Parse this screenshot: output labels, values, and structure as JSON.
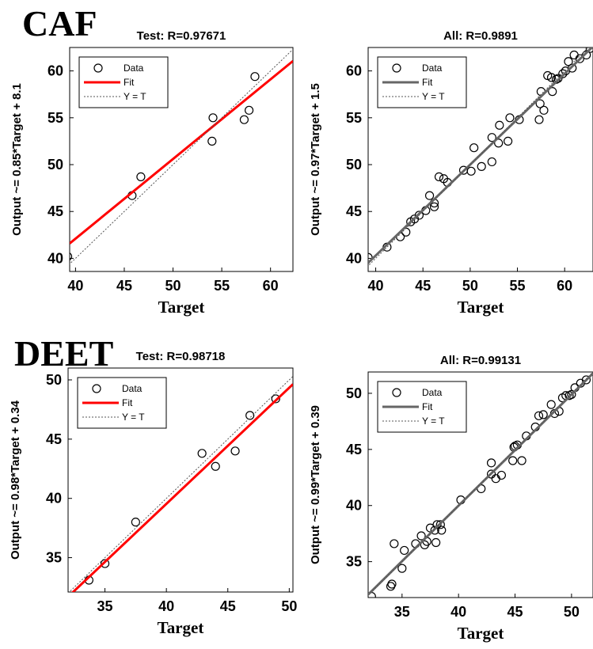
{
  "panel_labels": [
    "CAF",
    "DEET"
  ],
  "chart_data": [
    {
      "type": "scatter",
      "title": "Test: R=0.97671",
      "xlabel": "Target",
      "ylabel": "Output ~= 0.85*Target + 8.1",
      "xlim": [
        39.4,
        62.3
      ],
      "ylim": [
        38.6,
        62.5
      ],
      "xticks": [
        40,
        45,
        50,
        55,
        60
      ],
      "yticks": [
        40,
        45,
        50,
        55,
        60
      ],
      "legend": "upper left",
      "series": [
        {
          "name": "Data",
          "color": "#000000",
          "x": [
            39.2,
            45.8,
            46.7,
            54.1,
            54.0,
            57.3,
            57.8,
            58.4
          ],
          "values": [
            40.2,
            46.7,
            48.7,
            55.0,
            52.5,
            54.8,
            55.8,
            59.4
          ]
        },
        {
          "name": "Fit",
          "color": "#ff0000",
          "slope": 0.85,
          "intercept": 8.1
        },
        {
          "name": "Y = T",
          "color": "#555555"
        }
      ]
    },
    {
      "type": "scatter",
      "title": "All: R=0.9891",
      "xlabel": "Target",
      "ylabel": "Output ~= 0.97*Target + 1.5",
      "xlim": [
        39.2,
        63
      ],
      "ylim": [
        38.6,
        62.5
      ],
      "xticks": [
        40,
        45,
        50,
        55,
        60
      ],
      "yticks": [
        40,
        45,
        50,
        55,
        60
      ],
      "legend": "upper left",
      "series": [
        {
          "name": "Data",
          "color": "#000000",
          "x": [
            39.2,
            41.2,
            42.6,
            43.2,
            43.7,
            44.1,
            44.6,
            45.3,
            45.7,
            46.2,
            46.2,
            46.7,
            47.2,
            47.6,
            49.3,
            50.1,
            50.4,
            51.2,
            52.3,
            52.3,
            53.0,
            53.1,
            54.0,
            54.2,
            55.2,
            57.3,
            57.4,
            57.5,
            57.8,
            58.2,
            58.6,
            58.7,
            59.1,
            59.3,
            59.8,
            60.1,
            60.4,
            60.8,
            61.0,
            61.6,
            62.3,
            62.7
          ],
          "values": [
            40.1,
            41.2,
            42.3,
            42.8,
            43.9,
            44.2,
            44.6,
            45.1,
            46.7,
            45.5,
            45.9,
            48.7,
            48.5,
            48.1,
            49.4,
            49.3,
            51.8,
            49.8,
            50.3,
            52.9,
            52.3,
            54.2,
            52.5,
            55.0,
            54.8,
            54.8,
            56.5,
            57.8,
            55.8,
            59.5,
            59.3,
            57.8,
            59.1,
            59.2,
            59.7,
            60.0,
            61.0,
            60.3,
            61.7,
            61.3,
            61.7,
            62.4
          ]
        },
        {
          "name": "Fit",
          "color": "#666666",
          "slope": 0.97,
          "intercept": 1.5
        },
        {
          "name": "Y = T",
          "color": "#555555"
        }
      ]
    },
    {
      "type": "scatter",
      "title": "Test: R=0.98718",
      "xlabel": "Target",
      "ylabel": "Output ~= 0.98*Target + 0.34",
      "xlim": [
        32.0,
        50.3
      ],
      "ylim": [
        32.1,
        51.0
      ],
      "xticks": [
        35,
        40,
        45,
        50
      ],
      "yticks": [
        35,
        40,
        45,
        50
      ],
      "legend": "upper left",
      "series": [
        {
          "name": "Data",
          "color": "#000000",
          "x": [
            33.7,
            35.0,
            37.5,
            42.9,
            44.0,
            45.6,
            46.8,
            48.9
          ],
          "values": [
            33.1,
            34.5,
            38.0,
            43.8,
            42.7,
            44.0,
            47.0,
            48.4
          ]
        },
        {
          "name": "Fit",
          "color": "#ff0000",
          "slope": 0.98,
          "intercept": 0.34
        },
        {
          "name": "Y = T",
          "color": "#555555"
        }
      ]
    },
    {
      "type": "scatter",
      "title": "All: R=0.99131",
      "xlabel": "Target",
      "ylabel": "Output ~= 0.99*Target + 0.39",
      "xlim": [
        32.0,
        51.9
      ],
      "ylim": [
        31.8,
        51.9
      ],
      "xticks": [
        35,
        40,
        45,
        50
      ],
      "yticks": [
        35,
        40,
        45,
        50
      ],
      "legend": "upper left",
      "series": [
        {
          "name": "Data",
          "color": "#000000",
          "x": [
            32.3,
            34.0,
            34.1,
            34.3,
            35.0,
            35.2,
            36.2,
            36.7,
            37.0,
            37.2,
            37.5,
            37.9,
            38.0,
            38.1,
            38.4,
            38.5,
            40.2,
            42.0,
            42.9,
            42.9,
            43.3,
            43.8,
            44.8,
            44.9,
            45.0,
            45.2,
            45.6,
            46.0,
            46.8,
            47.1,
            47.5,
            48.2,
            48.5,
            48.9,
            49.2,
            49.5,
            49.8,
            50.0,
            50.3,
            50.8,
            51.3
          ],
          "values": [
            31.9,
            32.8,
            33.0,
            36.6,
            34.4,
            36.0,
            36.6,
            37.3,
            36.5,
            36.8,
            38.0,
            37.8,
            36.7,
            38.3,
            38.3,
            37.8,
            40.5,
            41.5,
            43.8,
            42.8,
            42.4,
            42.7,
            44.0,
            45.2,
            45.3,
            45.4,
            44.0,
            46.2,
            47.0,
            48.0,
            48.1,
            49.0,
            48.2,
            48.4,
            49.6,
            49.8,
            49.8,
            49.9,
            50.5,
            50.9,
            51.2
          ]
        },
        {
          "name": "Fit",
          "color": "#666666",
          "slope": 0.99,
          "intercept": 0.39
        },
        {
          "name": "Y = T",
          "color": "#555555"
        }
      ]
    }
  ]
}
